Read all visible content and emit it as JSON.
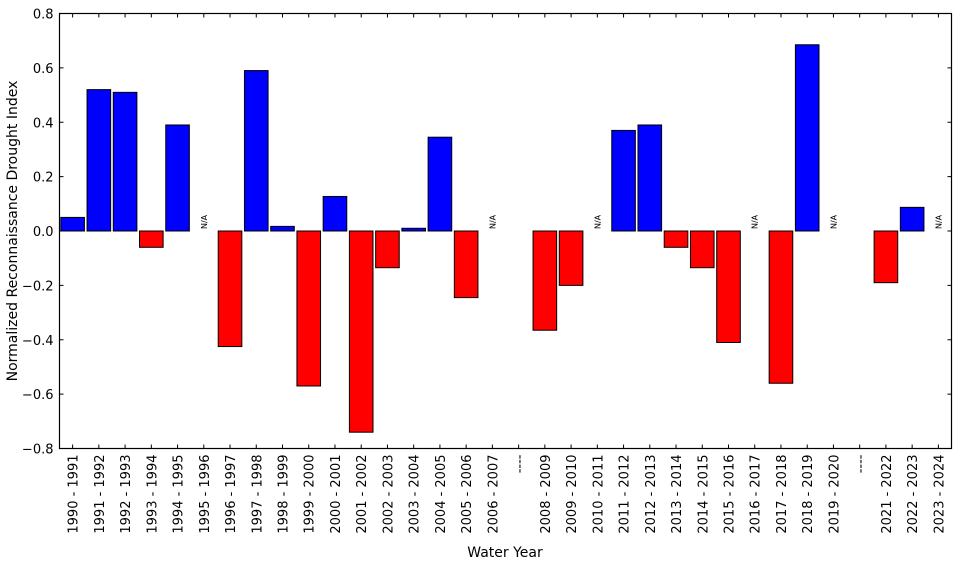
{
  "chart_data": {
    "type": "bar",
    "title": "",
    "xlabel": "Water Year",
    "ylabel": "Normalized Reconnaissance Drought Index",
    "ylim": [
      -0.8,
      0.8
    ],
    "yticks": [
      "0.8",
      "0.6",
      "0.4",
      "0.2",
      "0.0",
      "−0.2",
      "−0.4",
      "−0.6",
      "−0.8"
    ],
    "ytick_values": [
      0.8,
      0.6,
      0.4,
      0.2,
      0.0,
      -0.2,
      -0.4,
      -0.6,
      -0.8
    ],
    "grid": false,
    "legend": null,
    "colors": {
      "positive": "#0000ff",
      "negative": "#ff0000",
      "edge": "#000000"
    },
    "na_label": "N/A",
    "categories": [
      "1990 - 1991",
      "1991 - 1992",
      "1992 - 1993",
      "1993 - 1994",
      "1994 - 1995",
      "1995 - 1996",
      "1996 - 1997",
      "1997 - 1998",
      "1998 - 1999",
      "1999 - 2000",
      "2000 - 2001",
      "2001 - 2002",
      "2002 - 2003",
      "2003 - 2004",
      "2004 - 2005",
      "2005 - 2006",
      "2006 - 2007",
      "----",
      "2008 - 2009",
      "2009 - 2010",
      "2010 - 2011",
      "2011 - 2012",
      "2012 - 2013",
      "2013 - 2014",
      "2014 - 2015",
      "2015 - 2016",
      "2016 - 2017",
      "2017 - 2018",
      "2018 - 2019",
      "2019 - 2020",
      "----",
      "2021 - 2022",
      "2022 - 2023",
      "2023 - 2024"
    ],
    "values": [
      0.05,
      0.52,
      0.51,
      -0.06,
      0.39,
      null,
      -0.425,
      0.59,
      0.017,
      -0.57,
      0.127,
      -0.74,
      -0.135,
      0.01,
      0.345,
      -0.245,
      null,
      null,
      -0.365,
      -0.2,
      null,
      0.37,
      0.39,
      -0.06,
      -0.135,
      -0.41,
      null,
      -0.56,
      0.685,
      null,
      null,
      -0.19,
      0.087,
      null
    ]
  }
}
